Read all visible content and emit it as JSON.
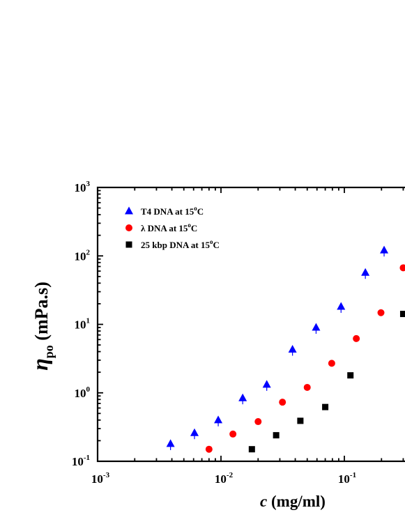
{
  "chart_data": {
    "type": "scatter",
    "x_scale": "log",
    "y_scale": "log",
    "xlim": [
      0.001,
      0.3
    ],
    "ylim": [
      0.1,
      1000
    ],
    "x_ticks": [
      {
        "value": 0.001,
        "base": "10",
        "exp": "-3"
      },
      {
        "value": 0.01,
        "base": "10",
        "exp": "-2"
      },
      {
        "value": 0.1,
        "base": "10",
        "exp": "-1"
      }
    ],
    "y_ticks": [
      {
        "value": 0.1,
        "base": "10",
        "exp": "-1"
      },
      {
        "value": 1,
        "base": "10",
        "exp": "0"
      },
      {
        "value": 10,
        "base": "10",
        "exp": "1"
      },
      {
        "value": 100,
        "base": "10",
        "exp": "2"
      },
      {
        "value": 1000,
        "base": "10",
        "exp": "3"
      }
    ],
    "xlabel": {
      "symbol": "c",
      "unit": " (mg/ml)"
    },
    "ylabel": {
      "symbol": "η",
      "sub": "po",
      "unit": " (mPa.s)"
    },
    "legend_position": "top-left",
    "series": [
      {
        "name": {
          "prefix": "T4 DNA at 15",
          "sup": "o",
          "suffix": "C"
        },
        "marker": "triangle",
        "color": "#0000ff",
        "points": [
          [
            0.0039,
            0.18
          ],
          [
            0.0061,
            0.26
          ],
          [
            0.0095,
            0.4
          ],
          [
            0.015,
            0.84
          ],
          [
            0.0235,
            1.32
          ],
          [
            0.038,
            4.3
          ],
          [
            0.059,
            9.0
          ],
          [
            0.094,
            18.2
          ],
          [
            0.148,
            57
          ],
          [
            0.21,
            121
          ]
        ]
      },
      {
        "name": {
          "prefix": "λ DNA at 15",
          "sup": "o",
          "suffix": "C"
        },
        "marker": "circle",
        "color": "#ff0000",
        "points": [
          [
            0.008,
            0.15
          ],
          [
            0.0125,
            0.25
          ],
          [
            0.02,
            0.38
          ],
          [
            0.0315,
            0.73
          ],
          [
            0.05,
            1.2
          ],
          [
            0.079,
            2.7
          ],
          [
            0.125,
            6.2
          ],
          [
            0.198,
            14.8
          ],
          [
            0.3,
            67
          ]
        ]
      },
      {
        "name": {
          "prefix": "25 kbp DNA at 15",
          "sup": "o",
          "suffix": "C"
        },
        "marker": "square",
        "color": "#000000",
        "points": [
          [
            0.0178,
            0.15
          ],
          [
            0.028,
            0.24
          ],
          [
            0.044,
            0.39
          ],
          [
            0.07,
            0.62
          ],
          [
            0.112,
            1.8
          ],
          [
            0.3,
            14.2
          ]
        ]
      }
    ]
  }
}
